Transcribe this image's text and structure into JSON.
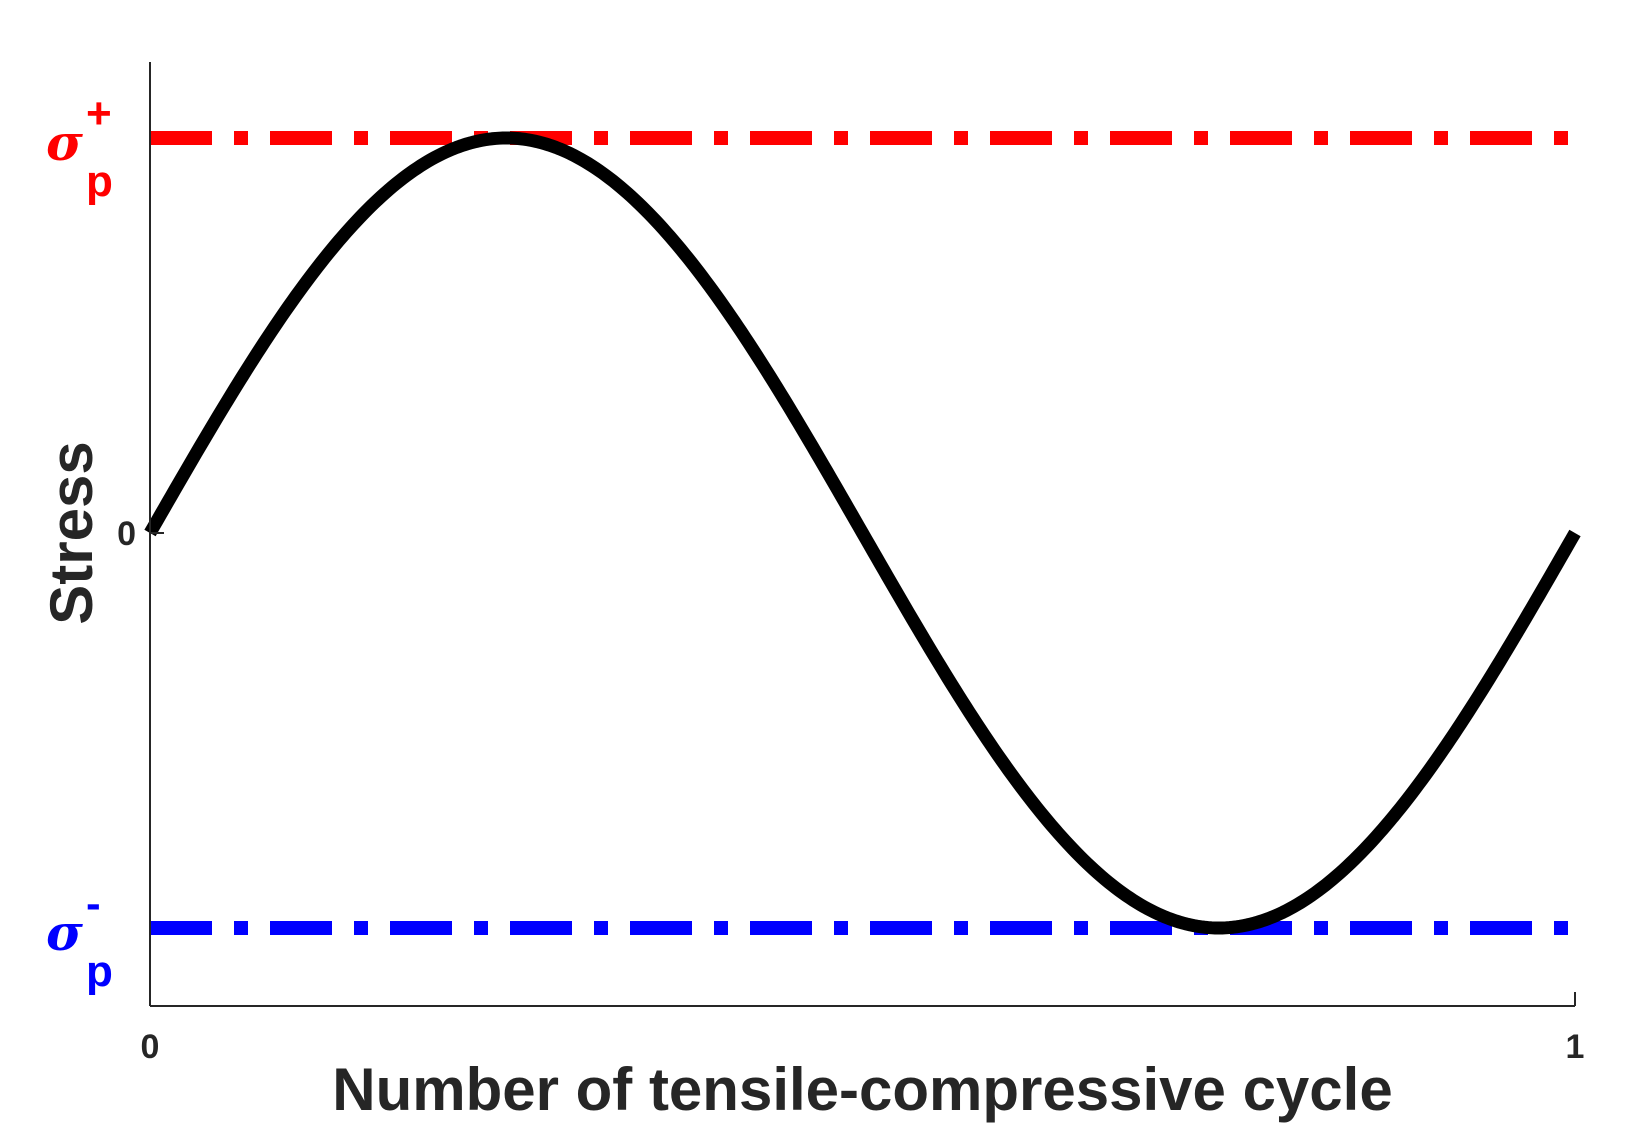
{
  "chart_data": {
    "type": "line",
    "xlabel": "Number of tensile-compressive cycle",
    "ylabel": "Stress",
    "xlim": [
      0,
      1
    ],
    "ylim": [
      -1.2,
      1.2
    ],
    "x_ticks": [
      {
        "value": 0,
        "label": "0"
      },
      {
        "value": 1,
        "label": "1"
      }
    ],
    "y_ticks": [
      {
        "value": 0,
        "label": "0"
      }
    ],
    "grid": false,
    "box": "left-and-bottom axes only",
    "series": [
      {
        "style": "solid",
        "color": "#000000",
        "function": "sin(2*pi*x)",
        "x_start": 0,
        "x_end": 1,
        "amplitude": 1
      }
    ],
    "reference_lines": [
      {
        "y": 1,
        "color": "#ff0000",
        "style": "dash-dot",
        "label_base": "σ",
        "label_sub": "p",
        "label_sup": "+"
      },
      {
        "y": -1,
        "color": "#0000ff",
        "style": "dash-dot",
        "label_base": "σ",
        "label_sub": "p",
        "label_sup": "-"
      }
    ]
  }
}
